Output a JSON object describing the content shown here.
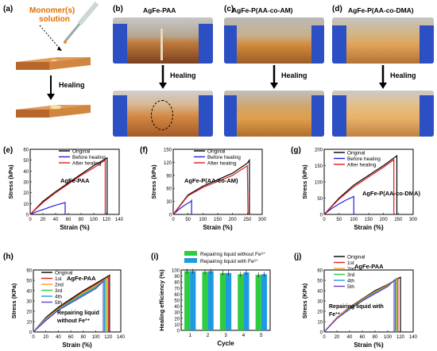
{
  "figure": {
    "panel_a": {
      "label": "(a)",
      "monomer": "Monomer(s)",
      "solution": "solution",
      "healing": "Healing"
    },
    "panel_b": {
      "label": "(b)",
      "title": "AgFe-PAA",
      "healing": "Healing"
    },
    "panel_c": {
      "label": "(c)",
      "title": "AgFe-P(AA-co-AM)",
      "healing": "Healing"
    },
    "panel_d": {
      "label": "(d)",
      "title": "AgFe-P(AA-co-DMA)",
      "healing": "Healing"
    },
    "colors": {
      "black": "#000000",
      "blue": "#1f1fdb",
      "red": "#e01c1c",
      "green": "#2ecc40",
      "cyan": "#1e9be0"
    }
  },
  "chart_data": [
    {
      "id": "e",
      "label": "(e)",
      "type": "line",
      "sample": "AgFe-PAA",
      "xlabel": "Strain (%)",
      "ylabel": "Stress (kPa)",
      "xlim": [
        0,
        140
      ],
      "ylim": [
        0,
        60
      ],
      "xticks": [
        "0",
        "20",
        "40",
        "60",
        "80",
        "100",
        "120",
        "140"
      ],
      "yticks": [
        "0",
        "10",
        "20",
        "30",
        "40",
        "50",
        "60"
      ],
      "series": [
        {
          "name": "Original",
          "color": "#000000",
          "x": [
            0,
            20,
            40,
            60,
            80,
            100,
            121,
            121
          ],
          "y": [
            0,
            12,
            21,
            29,
            37,
            45,
            52,
            0
          ]
        },
        {
          "name": "Before healing",
          "color": "#1f1fdb",
          "x": [
            0,
            10,
            20,
            30,
            40,
            55,
            55
          ],
          "y": [
            0,
            2.5,
            4.5,
            6.5,
            8.5,
            11,
            0
          ]
        },
        {
          "name": "After healing",
          "color": "#e01c1c",
          "x": [
            0,
            20,
            40,
            60,
            80,
            100,
            118,
            118
          ],
          "y": [
            0,
            11,
            20,
            28,
            36,
            43,
            50,
            0
          ]
        }
      ]
    },
    {
      "id": "f",
      "label": "(f)",
      "type": "line",
      "sample": "AgFe-P(AA-co-AM)",
      "xlabel": "Strain (%)",
      "ylabel": "Stress (kPa)",
      "xlim": [
        0,
        300
      ],
      "ylim": [
        0,
        150
      ],
      "xticks": [
        "0",
        "50",
        "100",
        "150",
        "200",
        "250",
        "300"
      ],
      "yticks": [
        "0",
        "30",
        "60",
        "90",
        "120",
        "150"
      ],
      "series": [
        {
          "name": "Original",
          "color": "#000000",
          "x": [
            0,
            50,
            100,
            150,
            200,
            250,
            257,
            257
          ],
          "y": [
            0,
            45,
            65,
            80,
            95,
            118,
            125,
            0
          ]
        },
        {
          "name": "Before healing",
          "color": "#1f1fdb",
          "x": [
            0,
            20,
            40,
            60,
            62,
            62
          ],
          "y": [
            0,
            12,
            22,
            30,
            32,
            0
          ]
        },
        {
          "name": "After healing",
          "color": "#e01c1c",
          "x": [
            0,
            50,
            100,
            150,
            200,
            250,
            252
          ],
          "y": [
            0,
            43,
            62,
            76,
            90,
            112,
            0
          ]
        }
      ]
    },
    {
      "id": "g",
      "label": "(g)",
      "type": "line",
      "sample": "AgFe-P(AA-co-DMA)",
      "xlabel": "Strain (%)",
      "ylabel": "Stress (kPa)",
      "xlim": [
        0,
        300
      ],
      "ylim": [
        0,
        200
      ],
      "xticks": [
        "0",
        "50",
        "100",
        "150",
        "200",
        "250",
        "300"
      ],
      "yticks": [
        "0",
        "50",
        "100",
        "150",
        "200"
      ],
      "series": [
        {
          "name": "Original",
          "color": "#000000",
          "x": [
            0,
            50,
            100,
            150,
            200,
            245,
            245
          ],
          "y": [
            0,
            50,
            90,
            120,
            150,
            180,
            0
          ]
        },
        {
          "name": "Before healing",
          "color": "#1f1fdb",
          "x": [
            0,
            25,
            50,
            75,
            100,
            100
          ],
          "y": [
            0,
            18,
            32,
            45,
            55,
            0
          ]
        },
        {
          "name": "After healing",
          "color": "#e01c1c",
          "x": [
            0,
            50,
            100,
            150,
            200,
            235,
            235
          ],
          "y": [
            0,
            47,
            85,
            115,
            145,
            168,
            0
          ]
        }
      ]
    },
    {
      "id": "h",
      "label": "(h)",
      "type": "line",
      "sample": "AgFe-PAA",
      "annotation": [
        "Repairing liquid",
        "without Fe³⁺"
      ],
      "xlabel": "Strain (%)",
      "ylabel": "Stress (KPa)",
      "xlim": [
        0,
        140
      ],
      "ylim": [
        0,
        60
      ],
      "xticks": [
        "0",
        "20",
        "40",
        "60",
        "80",
        "100",
        "120",
        "140"
      ],
      "yticks": [
        "0",
        "10",
        "20",
        "30",
        "40",
        "50",
        "60"
      ],
      "series": [
        {
          "name": "Original",
          "color": "#000000",
          "x": [
            0,
            20,
            40,
            60,
            80,
            100,
            122,
            122
          ],
          "y": [
            0,
            14,
            24,
            32,
            40,
            47,
            55,
            0
          ]
        },
        {
          "name": "1st",
          "color": "#e01c1c",
          "x": [
            0,
            20,
            40,
            60,
            80,
            100,
            120,
            120
          ],
          "y": [
            0,
            13,
            23,
            31,
            39,
            46,
            53,
            0
          ]
        },
        {
          "name": "2nd",
          "color": "#f5a623",
          "x": [
            0,
            20,
            40,
            60,
            80,
            100,
            118,
            118
          ],
          "y": [
            0,
            13,
            22,
            30,
            38,
            45,
            52,
            0
          ]
        },
        {
          "name": "3rd",
          "color": "#2ecc40",
          "x": [
            0,
            20,
            40,
            60,
            80,
            100,
            116,
            116
          ],
          "y": [
            0,
            12,
            22,
            30,
            37,
            44,
            51,
            0
          ]
        },
        {
          "name": "4th",
          "color": "#1e9be0",
          "x": [
            0,
            20,
            40,
            60,
            80,
            100,
            114,
            114
          ],
          "y": [
            0,
            12,
            21,
            29,
            36,
            43,
            50,
            0
          ]
        },
        {
          "name": "5th",
          "color": "#6a3fc1",
          "x": [
            0,
            20,
            40,
            60,
            80,
            100,
            112,
            112
          ],
          "y": [
            0,
            11,
            21,
            28,
            35,
            42,
            49,
            0
          ]
        }
      ]
    },
    {
      "id": "i",
      "label": "(i)",
      "type": "bar",
      "xlabel": "Cycle",
      "ylabel": "Healing efficiency (%)",
      "ylim": [
        0,
        100
      ],
      "categories": [
        "1",
        "2",
        "3",
        "4",
        "5"
      ],
      "yticks": [
        "0",
        "10",
        "20",
        "30",
        "40",
        "50",
        "60",
        "70",
        "80",
        "90",
        "100"
      ],
      "series": [
        {
          "name": "Repairing liquid without Fe³⁺",
          "color": "#2ecc40",
          "values": [
            98,
            97,
            95,
            93,
            92
          ]
        },
        {
          "name": "Repairing liquid with Fe³⁺",
          "color": "#1e9be0",
          "values": [
            98,
            98,
            95,
            96,
            93
          ]
        }
      ]
    },
    {
      "id": "j",
      "label": "(j)",
      "type": "line",
      "sample": "AgFe-PAA",
      "annotation": [
        "Repairing liquid with",
        "Fe³⁺"
      ],
      "xlabel": "Strain (%)",
      "ylabel": "Stress (KPa)",
      "xlim": [
        0,
        140
      ],
      "ylim": [
        0,
        60
      ],
      "xticks": [
        "0",
        "20",
        "40",
        "60",
        "80",
        "100",
        "120",
        "140"
      ],
      "yticks": [
        "0",
        "10",
        "20",
        "30",
        "40",
        "50",
        "60"
      ],
      "series": [
        {
          "name": "Original",
          "color": "#000000",
          "x": [
            0,
            20,
            40,
            60,
            80,
            100,
            120,
            120
          ],
          "y": [
            0,
            14,
            24,
            32,
            40,
            46,
            53,
            0
          ]
        },
        {
          "name": "1st",
          "color": "#e01c1c",
          "x": [
            0,
            20,
            40,
            60,
            80,
            100,
            116,
            116
          ],
          "y": [
            0,
            14,
            24,
            32,
            39,
            46,
            52,
            0
          ]
        },
        {
          "name": "2nd",
          "color": "#f5a623",
          "x": [
            0,
            20,
            40,
            60,
            80,
            100,
            114,
            114
          ],
          "y": [
            0,
            14,
            23,
            31,
            39,
            45,
            52,
            0
          ]
        },
        {
          "name": "3rd",
          "color": "#2ecc40",
          "x": [
            0,
            20,
            40,
            60,
            80,
            100,
            113,
            113
          ],
          "y": [
            0,
            13,
            23,
            31,
            38,
            45,
            51,
            0
          ]
        },
        {
          "name": "4th",
          "color": "#1e9be0",
          "x": [
            0,
            20,
            40,
            60,
            80,
            100,
            112,
            112
          ],
          "y": [
            0,
            13,
            22,
            30,
            38,
            44,
            51,
            0
          ]
        },
        {
          "name": "5th",
          "color": "#6a3fc1",
          "x": [
            0,
            20,
            40,
            60,
            80,
            100,
            110,
            110
          ],
          "y": [
            0,
            13,
            22,
            30,
            37,
            44,
            50,
            0
          ]
        }
      ]
    }
  ]
}
